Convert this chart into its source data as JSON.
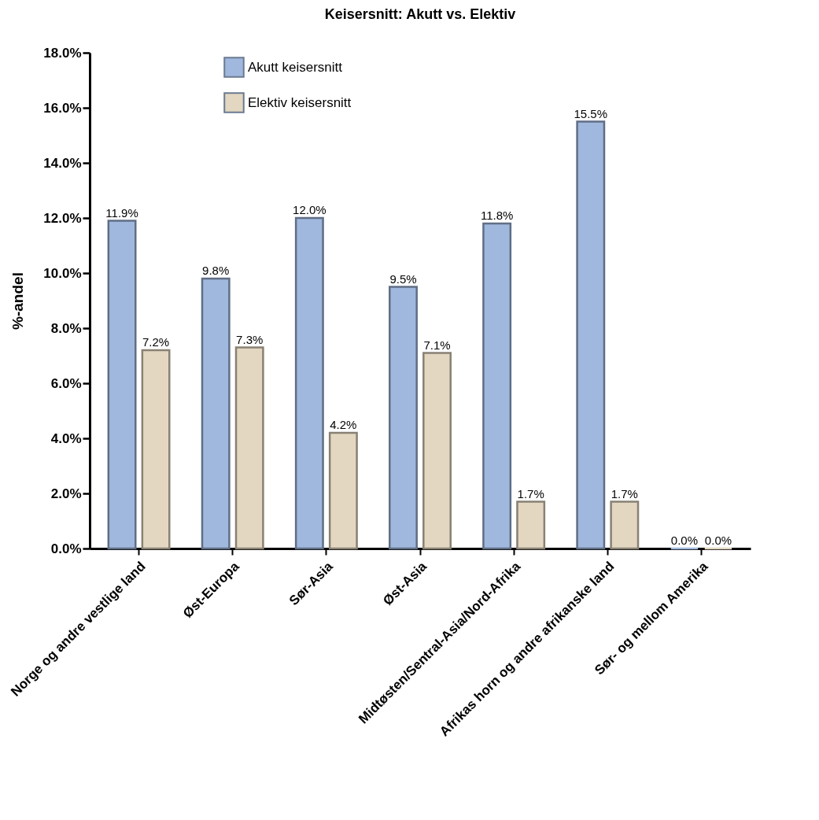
{
  "chart_data": {
    "type": "bar",
    "title": "Keisersnitt: Akutt vs. Elektiv",
    "ylabel": "%-andel",
    "categories": [
      "Norge og andre vestlige land",
      "Øst-Europa",
      "Sør-Asia",
      "Øst-Asia",
      "Midtøsten/Sentral-Asia/Nord-Afrika",
      "Afrikas horn og andre afrikanske land",
      "Sør- og mellom Amerika"
    ],
    "series": [
      {
        "name": "Akutt keisersnitt",
        "color": "#a0b8dd",
        "values": [
          11.9,
          9.8,
          12.0,
          9.5,
          11.8,
          15.5,
          0.0
        ],
        "value_labels": [
          "11.9%",
          "9.8%",
          "12.0%",
          "9.5%",
          "11.8%",
          "15.5%",
          "0.0%"
        ]
      },
      {
        "name": "Elektiv keisersnitt",
        "color": "#e3d7c1",
        "values": [
          7.2,
          7.3,
          4.2,
          7.1,
          1.7,
          1.7,
          0.0
        ],
        "value_labels": [
          "7.2%",
          "7.3%",
          "4.2%",
          "7.1%",
          "1.7%",
          "1.7%",
          "0.0%"
        ]
      }
    ],
    "ylim": [
      0,
      18
    ],
    "yticks": [
      {
        "value": 0,
        "label": "0.0%"
      },
      {
        "value": 2,
        "label": "2.0%"
      },
      {
        "value": 4,
        "label": "4.0%"
      },
      {
        "value": 6,
        "label": "6.0%"
      },
      {
        "value": 8,
        "label": "8.0%"
      },
      {
        "value": 10,
        "label": "10.0%"
      },
      {
        "value": 12,
        "label": "12.0%"
      },
      {
        "value": 14,
        "label": "14.0%"
      },
      {
        "value": 16,
        "label": "16.0%"
      },
      {
        "value": 18,
        "label": "18.0%"
      }
    ],
    "legend": "top left",
    "grid": false
  }
}
